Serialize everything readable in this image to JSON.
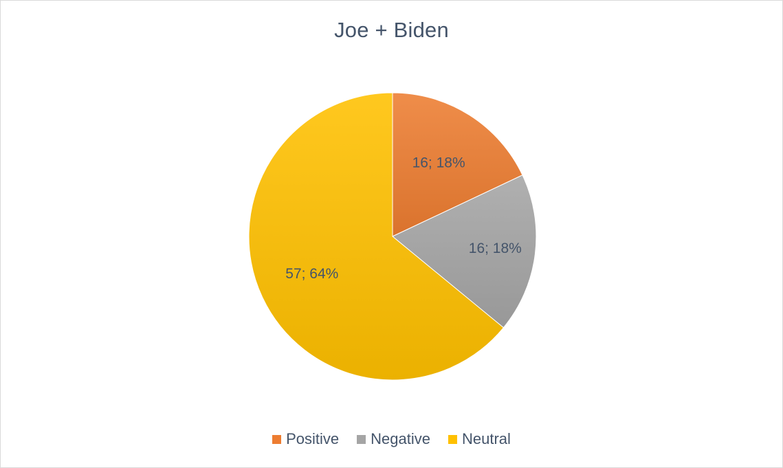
{
  "chart_data": {
    "type": "pie",
    "title": "Joe + Biden",
    "categories": [
      "Positive",
      "Negative",
      "Neutral"
    ],
    "values": [
      16,
      16,
      57
    ],
    "percents": [
      "18%",
      "18%",
      "64%"
    ],
    "data_labels": [
      "16; 18%",
      "16; 18%",
      "57; 64%"
    ],
    "colors": [
      "#ed7d31",
      "#a5a5a5",
      "#ffc000"
    ],
    "legend_position": "bottom",
    "start_angle": "12 o'clock",
    "direction": "clockwise"
  },
  "legend": {
    "items": [
      {
        "label": "Positive",
        "color": "#ed7d31"
      },
      {
        "label": "Negative",
        "color": "#a5a5a5"
      },
      {
        "label": "Neutral",
        "color": "#ffc000"
      }
    ]
  }
}
